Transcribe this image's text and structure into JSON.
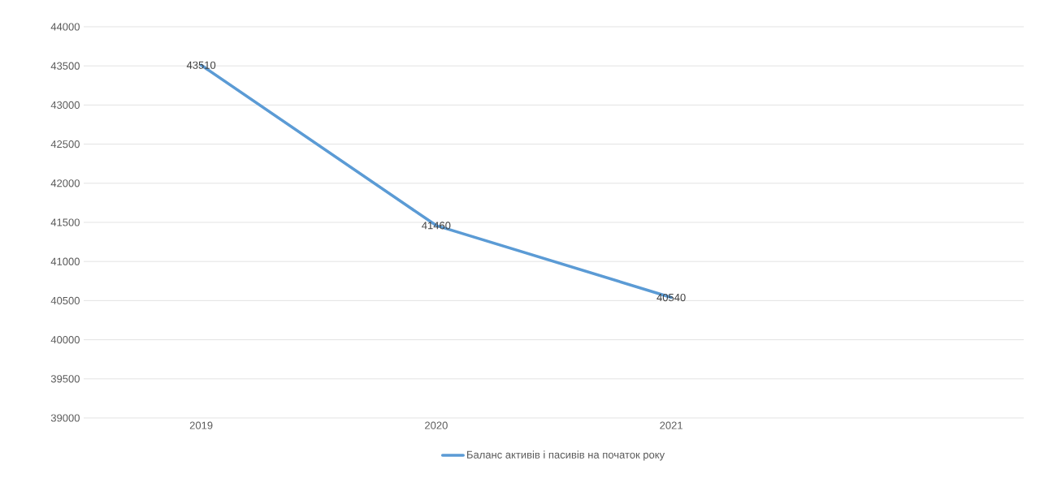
{
  "chart_data": {
    "type": "line",
    "categories": [
      "2019",
      "2020",
      "2021",
      null
    ],
    "series": [
      {
        "name": "Баланс активів і пасивів на початок року",
        "color": "#5b9bd5",
        "values": [
          43510,
          41460,
          40540,
          null
        ]
      }
    ],
    "ylim": [
      39000,
      44000
    ],
    "yticks": [
      39000,
      39500,
      40000,
      40500,
      41000,
      41500,
      42000,
      42500,
      43000,
      43500,
      44000
    ],
    "grid": "y",
    "legend": "bottom",
    "data_labels": true,
    "marker": "none",
    "line_style": "solid"
  }
}
